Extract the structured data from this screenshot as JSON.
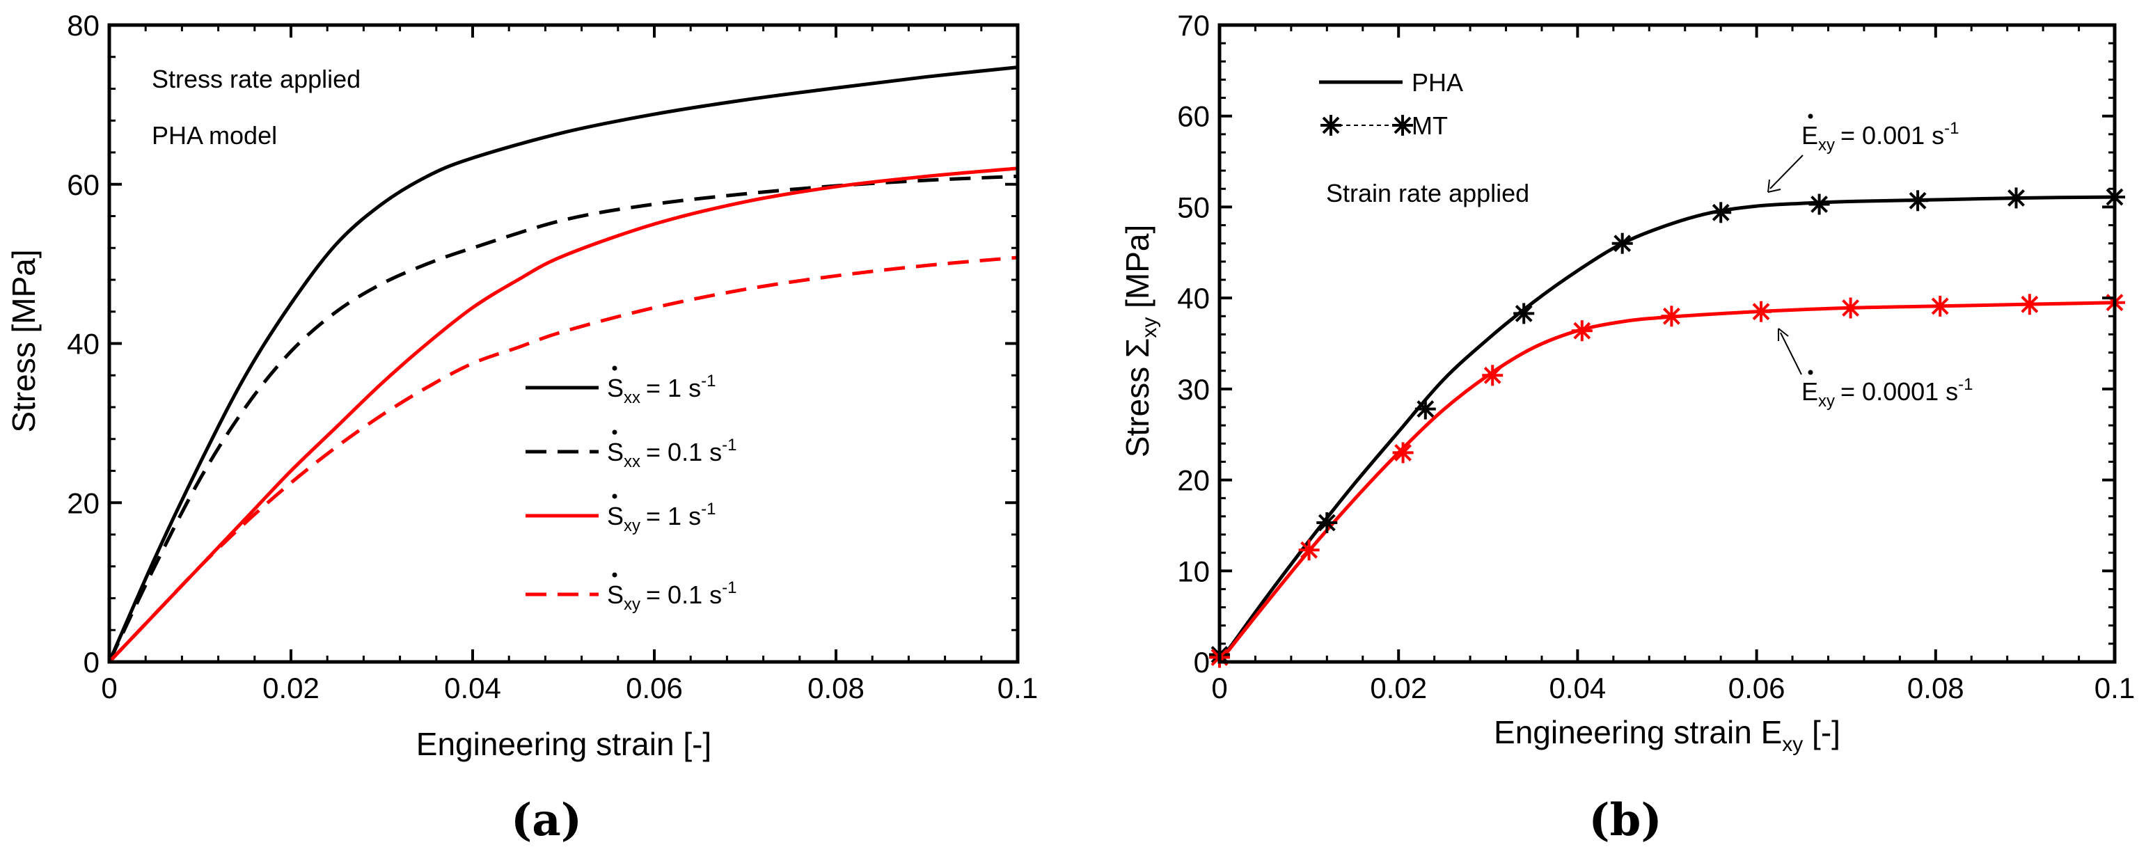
{
  "chart_data": [
    {
      "type": "line",
      "panel_label": "(a)",
      "xlabel": "Engineering strain [-]",
      "ylabel": "Stress [MPa]",
      "xlim": [
        0,
        0.1
      ],
      "ylim": [
        0,
        80
      ],
      "xticks": [
        "0",
        "0.02",
        "0.04",
        "0.06",
        "0.08",
        "0.1"
      ],
      "yticks": [
        "0",
        "20",
        "40",
        "60",
        "80"
      ],
      "grid": false,
      "legend_position": "center-right",
      "annotations": [
        "Stress rate applied",
        "PHA model"
      ],
      "series": [
        {
          "label_main": "S",
          "label_sub": "xx",
          "label_value": "= 1 s",
          "label_sup": "-1",
          "color": "#000000",
          "dash": "solid",
          "x": [
            0,
            0.005,
            0.01,
            0.015,
            0.02,
            0.025,
            0.03,
            0.035,
            0.04,
            0.05,
            0.06,
            0.07,
            0.08,
            0.09,
            0.1
          ],
          "y": [
            0,
            13,
            25,
            36,
            45,
            52.5,
            57.5,
            61,
            63.3,
            66.5,
            68.8,
            70.6,
            72.1,
            73.5,
            74.7
          ]
        },
        {
          "label_main": "S",
          "label_sub": "xx",
          "label_value": "= 0.1 s",
          "label_sup": "-1",
          "color": "#000000",
          "dash": "dashed",
          "x": [
            0,
            0.005,
            0.01,
            0.015,
            0.02,
            0.025,
            0.03,
            0.035,
            0.04,
            0.05,
            0.06,
            0.07,
            0.08,
            0.09,
            0.1
          ],
          "y": [
            0,
            12,
            23,
            32,
            39,
            44,
            47.5,
            50,
            52,
            55.5,
            57.5,
            58.8,
            59.8,
            60.5,
            61
          ]
        },
        {
          "label_main": "S",
          "label_sub": "xy",
          "label_value": "= 1 s",
          "label_sup": "-1",
          "color": "#ff0000",
          "dash": "solid",
          "x": [
            0,
            0.005,
            0.01,
            0.015,
            0.02,
            0.025,
            0.03,
            0.035,
            0.04,
            0.045,
            0.05,
            0.06,
            0.07,
            0.08,
            0.09,
            0.1
          ],
          "y": [
            0,
            6,
            12,
            18,
            24,
            29.5,
            35,
            40,
            44.5,
            48,
            51,
            55,
            57.8,
            59.7,
            61,
            62
          ]
        },
        {
          "label_main": "S",
          "label_sub": "xy",
          "label_value": "= 0.1 s",
          "label_sup": "-1",
          "color": "#ff0000",
          "dash": "dashed",
          "x": [
            0,
            0.005,
            0.01,
            0.015,
            0.02,
            0.025,
            0.03,
            0.035,
            0.04,
            0.045,
            0.05,
            0.06,
            0.07,
            0.08,
            0.09,
            0.1
          ],
          "y": [
            0,
            6,
            12,
            17.5,
            22.5,
            27,
            31,
            34.5,
            37.5,
            39.5,
            41.5,
            44.5,
            46.8,
            48.5,
            49.8,
            50.8
          ]
        }
      ]
    },
    {
      "type": "line",
      "panel_label": "(b)",
      "xlabel_main": "Engineering strain E",
      "xlabel_sub": "xy",
      "xlabel_tail": " [-]",
      "ylabel_main": "Stress Σ",
      "ylabel_sub": "xy",
      "ylabel_tail": " [MPa]",
      "xlim": [
        0,
        0.1
      ],
      "ylim": [
        0,
        70
      ],
      "xticks": [
        "0",
        "0.02",
        "0.04",
        "0.06",
        "0.08",
        "0.1"
      ],
      "yticks": [
        "0",
        "10",
        "20",
        "30",
        "40",
        "50",
        "60",
        "70"
      ],
      "grid": false,
      "legend_position": "top-left",
      "legend": [
        "PHA",
        "MT"
      ],
      "annotations": [
        "Strain rate applied"
      ],
      "series": [
        {
          "name": "PHA",
          "color": "#000000",
          "rate_main": "E",
          "rate_sub": "xy",
          "rate_value": "= 0.001 s",
          "rate_sup": "-1",
          "x": [
            0,
            0.005,
            0.01,
            0.015,
            0.02,
            0.025,
            0.03,
            0.035,
            0.04,
            0.045,
            0.05,
            0.055,
            0.06,
            0.065,
            0.07,
            0.08,
            0.09,
            0.1
          ],
          "y": [
            0,
            6.8,
            13.3,
            19.5,
            25.3,
            31,
            35.5,
            39.5,
            43,
            46,
            48,
            49.4,
            50.1,
            50.4,
            50.6,
            50.8,
            51,
            51.1
          ]
        },
        {
          "name": "PHA",
          "color": "#ff0000",
          "rate_main": "E",
          "rate_sub": "xy",
          "rate_value": "= 0.0001 s",
          "rate_sup": "-1",
          "x": [
            0,
            0.005,
            0.01,
            0.015,
            0.02,
            0.025,
            0.03,
            0.035,
            0.04,
            0.045,
            0.05,
            0.06,
            0.07,
            0.08,
            0.09,
            0.1
          ],
          "y": [
            0,
            6.2,
            12.2,
            17.8,
            23,
            27.7,
            31.5,
            34.5,
            36.4,
            37.4,
            37.9,
            38.5,
            38.9,
            39.1,
            39.3,
            39.5
          ]
        },
        {
          "name": "MT",
          "color": "#000000",
          "x": [
            0,
            0.012,
            0.023,
            0.034,
            0.045,
            0.056,
            0.067,
            0.078,
            0.089,
            0.1
          ],
          "y": [
            0.8,
            15.3,
            27.8,
            38.3,
            46,
            49.4,
            50.3,
            50.7,
            51,
            51.1
          ]
        },
        {
          "name": "MT",
          "color": "#ff0000",
          "x": [
            0,
            0.01,
            0.0205,
            0.0305,
            0.0405,
            0.0505,
            0.0605,
            0.0705,
            0.0805,
            0.0905,
            0.1
          ],
          "y": [
            0.5,
            12.3,
            23,
            31.5,
            36.4,
            38,
            38.5,
            38.9,
            39.1,
            39.3,
            39.5
          ]
        }
      ]
    }
  ]
}
